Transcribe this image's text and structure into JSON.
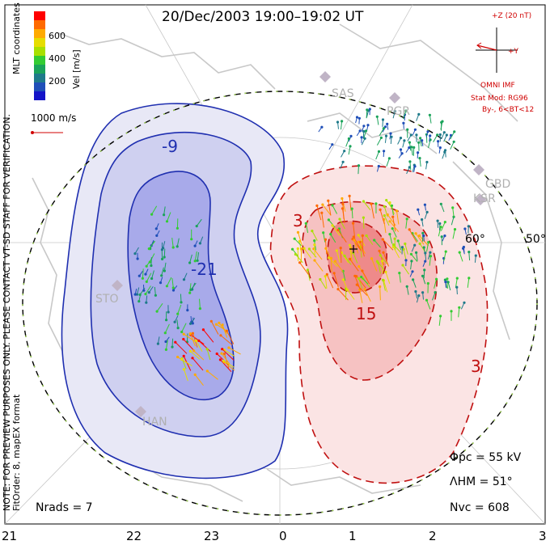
{
  "header": {
    "title": "20/Dec/2003 19:00–19:02 UT"
  },
  "legend": {
    "unit_label": "Vel [m/s]",
    "ticks": [
      "600",
      "400",
      "200"
    ],
    "colors": [
      "#ff0000",
      "#ff6a00",
      "#ffaa00",
      "#e6dd00",
      "#a8e000",
      "#33cc33",
      "#1aa35a",
      "#1e7a8a",
      "#1f4fb8",
      "#1414c8"
    ],
    "scale_label": "1000 m/s",
    "coord_label": "MLT coordinates"
  },
  "imf": {
    "z_label": "+Z (20 nT)",
    "y_label": "+Y",
    "source": "OMNI IMF",
    "model": "Stat Mod: RG96",
    "condition": "By-, 6<BT<12"
  },
  "notes": {
    "preview": "NOTE: FOR PREVIEW PURPOSES ONLY. PLEASE CONTACT VT-SD STAFF FOR VERIFICATION.",
    "fit": "FitOrder: 8, mapEX format"
  },
  "stations": [
    "SAS",
    "PGR",
    "GBD",
    "KSR",
    "STO",
    "HAN"
  ],
  "contour_labels": {
    "neg": [
      "-9",
      "-21"
    ],
    "pos": [
      "3",
      "15",
      "3"
    ]
  },
  "lat_labels": [
    "60°",
    "50°"
  ],
  "stats": {
    "phi_pc": "Φpc = 55 kV",
    "lambda_hm": "ΛHM = 51°",
    "n_vc": "Nvc = 608",
    "n_rads": "Nrads = 7"
  },
  "x_axis": {
    "ticks": [
      "21",
      "22",
      "23",
      "0",
      "1",
      "2",
      "3"
    ]
  },
  "colors": {
    "neg_fill_outer": "#e8e8f6",
    "neg_fill_mid": "#cfd0f0",
    "neg_fill_inner": "#a8aaea",
    "neg_line": "#1f2fb0",
    "pos_fill_outer": "#fbe4e4",
    "pos_fill_mid": "#f6c2c2",
    "pos_fill_inner": "#ee8a8a",
    "pos_line": "#c01010"
  }
}
